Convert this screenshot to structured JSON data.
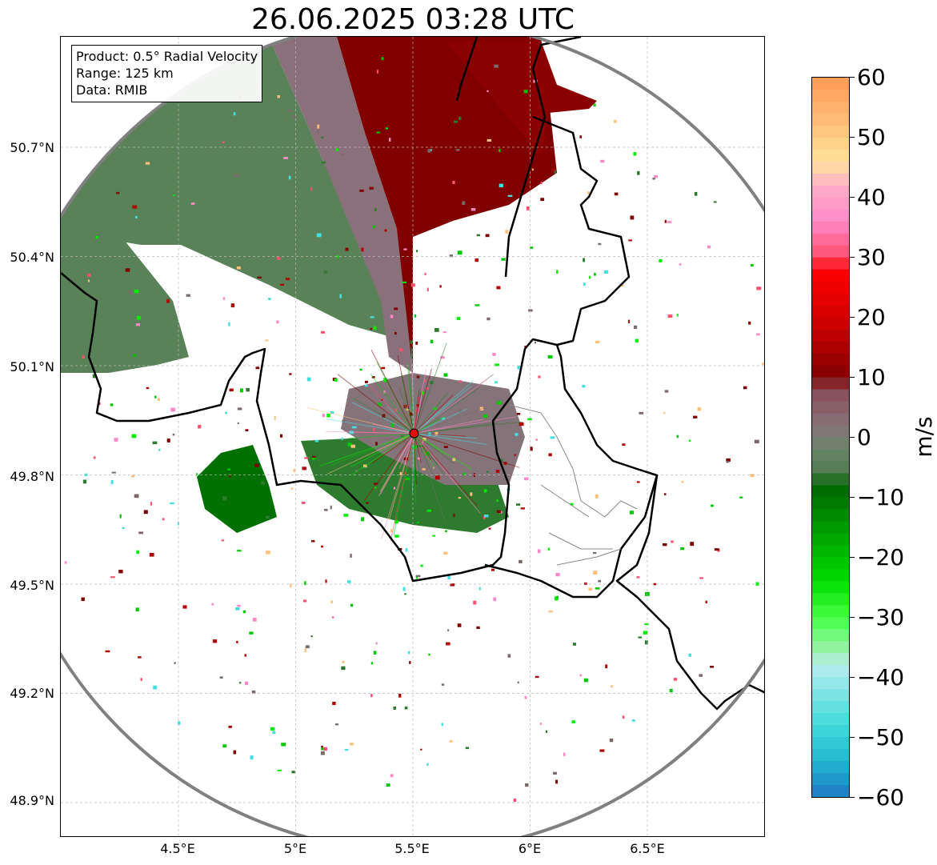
{
  "title": "26.06.2025 03:28 UTC",
  "info_box": {
    "product": "Product: 0.5° Radial Velocity",
    "range": "Range: 125 km",
    "data_source": "Data: RMIB"
  },
  "axes": {
    "lat_ticks": [
      "50.7°N",
      "50.4°N",
      "50.1°N",
      "49.8°N",
      "49.5°N",
      "49.2°N",
      "48.9°N"
    ],
    "lon_ticks": [
      "4.5°E",
      "5°E",
      "5.5°E",
      "6°E",
      "6.5°E"
    ]
  },
  "colorbar": {
    "unit": "m/s",
    "ticks": [
      "60",
      "50",
      "40",
      "30",
      "20",
      "10",
      "0",
      "−10",
      "−20",
      "−30",
      "−40",
      "−50",
      "−60"
    ],
    "min": -60,
    "max": 60,
    "stops": [
      {
        "v": 60,
        "c": "#ff9a55"
      },
      {
        "v": 52,
        "c": "#ffc07a"
      },
      {
        "v": 46,
        "c": "#ffe39a"
      },
      {
        "v": 42,
        "c": "#ffb0c8"
      },
      {
        "v": 36,
        "c": "#ff88c8"
      },
      {
        "v": 30,
        "c": "#ff5070"
      },
      {
        "v": 28,
        "c": "#ff0000"
      },
      {
        "v": 18,
        "c": "#c80000"
      },
      {
        "v": 10,
        "c": "#800000"
      },
      {
        "v": 8,
        "c": "#8b4c56"
      },
      {
        "v": 2,
        "c": "#86727a"
      },
      {
        "v": -2,
        "c": "#6a8468"
      },
      {
        "v": -6,
        "c": "#4f7a4f"
      },
      {
        "v": -8,
        "c": "#006400"
      },
      {
        "v": -24,
        "c": "#00dd00"
      },
      {
        "v": -30,
        "c": "#44ff44"
      },
      {
        "v": -36,
        "c": "#a0f0b0"
      },
      {
        "v": -38,
        "c": "#b8eef0"
      },
      {
        "v": -48,
        "c": "#40dada"
      },
      {
        "v": -54,
        "c": "#22b8d0"
      },
      {
        "v": -60,
        "c": "#1f78c4"
      }
    ]
  },
  "radar_site": {
    "lat": 49.914,
    "lon": 5.505,
    "color": "#e01010"
  },
  "colors": {
    "outbound": "#800000",
    "inbound": "#5a8258",
    "near_zero": "#85737a",
    "border": "#000000",
    "range_ring": "#808080"
  }
}
